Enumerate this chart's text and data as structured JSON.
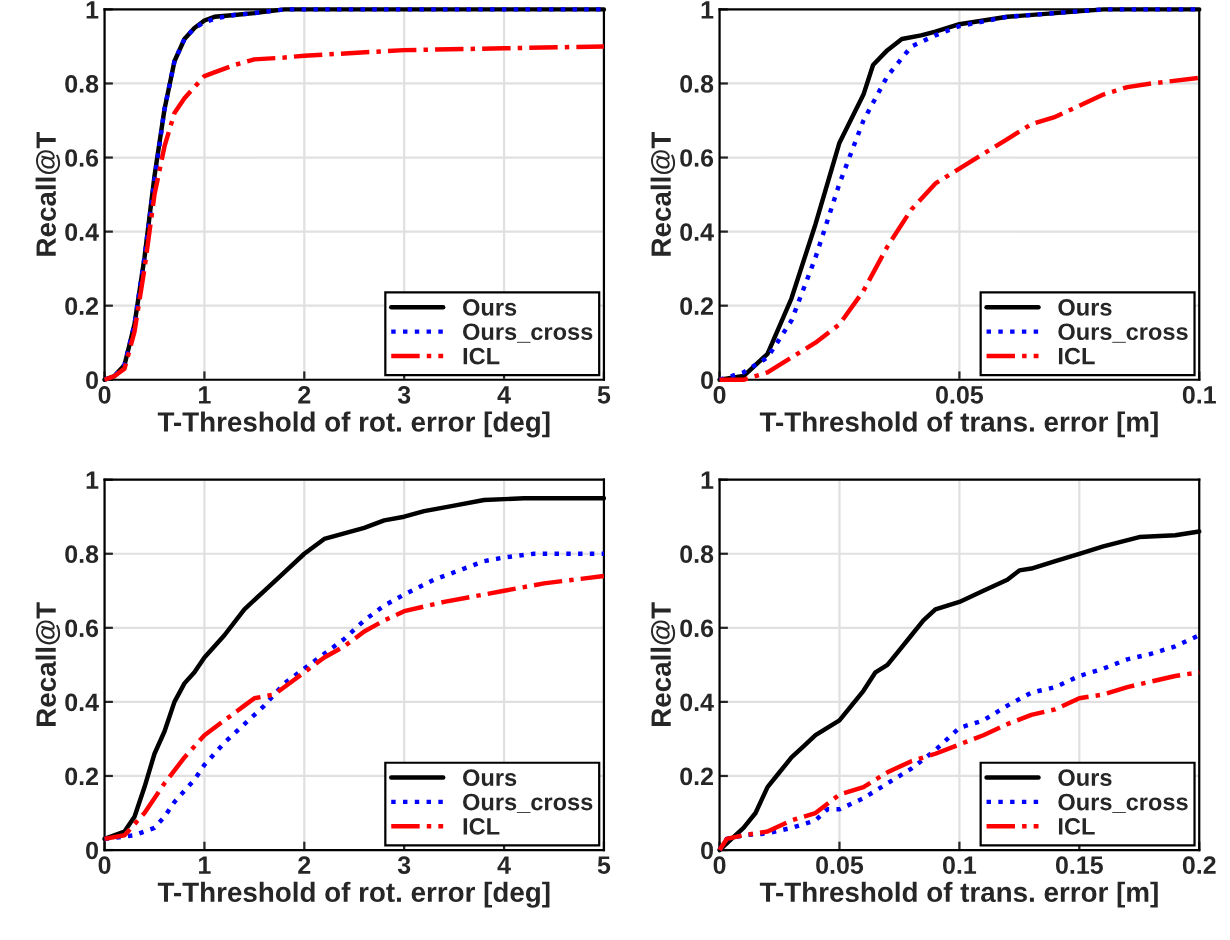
{
  "chart_data": [
    {
      "type": "line",
      "xlabel": "T-Threshold of rot. error [deg]",
      "ylabel": "Recall@T",
      "xlim": [
        0,
        5
      ],
      "xticks": [
        0,
        1,
        2,
        3,
        4,
        5
      ],
      "ylim": [
        0,
        1
      ],
      "yticks": [
        0,
        0.2,
        0.4,
        0.6,
        0.8,
        1
      ],
      "grid": true,
      "legend": "bottom right",
      "series": [
        {
          "name": "Ours",
          "color": "#000000",
          "line_style": "solid",
          "x": [
            0,
            0.1,
            0.2,
            0.3,
            0.4,
            0.5,
            0.6,
            0.7,
            0.8,
            0.9,
            1.0,
            1.1,
            1.3,
            1.5,
            1.8,
            2,
            3,
            4,
            5
          ],
          "values": [
            0,
            0.01,
            0.04,
            0.15,
            0.33,
            0.55,
            0.73,
            0.86,
            0.92,
            0.95,
            0.97,
            0.98,
            0.985,
            0.99,
            1,
            1,
            1,
            1,
            1
          ]
        },
        {
          "name": "Ours_cross",
          "color": "#0000ff",
          "line_style": "dotted",
          "x": [
            0,
            0.1,
            0.2,
            0.3,
            0.4,
            0.5,
            0.6,
            0.7,
            0.8,
            0.9,
            1.0,
            1.1,
            1.3,
            1.5,
            1.8,
            2,
            3,
            4,
            5
          ],
          "values": [
            0,
            0.01,
            0.04,
            0.15,
            0.33,
            0.54,
            0.73,
            0.86,
            0.92,
            0.95,
            0.965,
            0.975,
            0.985,
            0.99,
            1,
            1,
            1,
            1,
            1
          ]
        },
        {
          "name": "ICL",
          "color": "#ff0000",
          "line_style": "dashdot",
          "x": [
            0,
            0.1,
            0.2,
            0.3,
            0.4,
            0.5,
            0.6,
            0.7,
            0.8,
            0.9,
            1.0,
            1.1,
            1.3,
            1.5,
            1.8,
            2,
            3,
            4,
            5
          ],
          "values": [
            0,
            0.01,
            0.03,
            0.13,
            0.3,
            0.5,
            0.63,
            0.72,
            0.76,
            0.79,
            0.82,
            0.83,
            0.85,
            0.865,
            0.87,
            0.875,
            0.89,
            0.895,
            0.9
          ]
        }
      ]
    },
    {
      "type": "line",
      "xlabel": "T-Threshold of trans. error [m]",
      "ylabel": "Recall@T",
      "xlim": [
        0,
        0.1
      ],
      "xticks": [
        0,
        0.05,
        0.1
      ],
      "ylim": [
        0,
        1
      ],
      "yticks": [
        0,
        0.2,
        0.4,
        0.6,
        0.8,
        1
      ],
      "grid": true,
      "legend": "bottom right",
      "series": [
        {
          "name": "Ours",
          "color": "#000000",
          "line_style": "solid",
          "x": [
            0,
            0.005,
            0.01,
            0.015,
            0.02,
            0.025,
            0.03,
            0.032,
            0.035,
            0.038,
            0.042,
            0.045,
            0.05,
            0.06,
            0.07,
            0.08,
            0.1
          ],
          "values": [
            0,
            0.01,
            0.07,
            0.22,
            0.42,
            0.64,
            0.77,
            0.85,
            0.89,
            0.92,
            0.93,
            0.94,
            0.96,
            0.98,
            0.99,
            1,
            1
          ]
        },
        {
          "name": "Ours_cross",
          "color": "#0000ff",
          "line_style": "dotted",
          "x": [
            0,
            0.005,
            0.01,
            0.015,
            0.02,
            0.025,
            0.03,
            0.035,
            0.04,
            0.045,
            0.05,
            0.06,
            0.07,
            0.08,
            0.1
          ],
          "values": [
            0,
            0.02,
            0.06,
            0.16,
            0.33,
            0.53,
            0.7,
            0.82,
            0.9,
            0.93,
            0.955,
            0.98,
            0.99,
            1,
            1
          ]
        },
        {
          "name": "ICL",
          "color": "#ff0000",
          "line_style": "dashdot",
          "x": [
            0,
            0.005,
            0.01,
            0.015,
            0.02,
            0.025,
            0.03,
            0.035,
            0.04,
            0.045,
            0.05,
            0.055,
            0.06,
            0.065,
            0.07,
            0.075,
            0.08,
            0.085,
            0.09,
            0.1
          ],
          "values": [
            0,
            0,
            0.02,
            0.06,
            0.1,
            0.15,
            0.24,
            0.36,
            0.46,
            0.53,
            0.57,
            0.61,
            0.65,
            0.69,
            0.71,
            0.74,
            0.77,
            0.79,
            0.8,
            0.815
          ]
        }
      ]
    },
    {
      "type": "line",
      "xlabel": "T-Threshold of rot. error [deg]",
      "ylabel": "Recall@T",
      "xlim": [
        0,
        5
      ],
      "xticks": [
        0,
        1,
        2,
        3,
        4,
        5
      ],
      "ylim": [
        0,
        1
      ],
      "yticks": [
        0,
        0.2,
        0.4,
        0.6,
        0.8,
        1
      ],
      "grid": true,
      "legend": "bottom right",
      "series": [
        {
          "name": "Ours",
          "color": "#000000",
          "line_style": "solid",
          "x": [
            0,
            0.2,
            0.3,
            0.4,
            0.5,
            0.6,
            0.7,
            0.8,
            0.9,
            1.0,
            1.2,
            1.4,
            1.6,
            1.8,
            2.0,
            2.2,
            2.4,
            2.6,
            2.8,
            3.0,
            3.2,
            3.5,
            3.8,
            4.2,
            5
          ],
          "values": [
            0.03,
            0.05,
            0.09,
            0.17,
            0.26,
            0.32,
            0.4,
            0.45,
            0.48,
            0.52,
            0.58,
            0.65,
            0.7,
            0.75,
            0.8,
            0.84,
            0.855,
            0.87,
            0.89,
            0.9,
            0.915,
            0.93,
            0.945,
            0.95,
            0.95
          ]
        },
        {
          "name": "Ours_cross",
          "color": "#0000ff",
          "line_style": "dotted",
          "x": [
            0,
            0.3,
            0.5,
            0.6,
            0.7,
            0.8,
            0.9,
            1.0,
            1.2,
            1.4,
            1.6,
            1.8,
            2.0,
            2.2,
            2.4,
            2.6,
            2.8,
            3.0,
            3.3,
            3.6,
            3.8,
            4.0,
            4.3,
            5
          ],
          "values": [
            0.03,
            0.04,
            0.06,
            0.09,
            0.13,
            0.16,
            0.19,
            0.23,
            0.29,
            0.34,
            0.39,
            0.45,
            0.49,
            0.53,
            0.57,
            0.62,
            0.66,
            0.69,
            0.73,
            0.76,
            0.78,
            0.79,
            0.8,
            0.8
          ]
        },
        {
          "name": "ICL",
          "color": "#ff0000",
          "line_style": "dashdot",
          "x": [
            0,
            0.2,
            0.4,
            0.6,
            0.8,
            1.0,
            1.2,
            1.4,
            1.5,
            1.7,
            1.9,
            2.0,
            2.2,
            2.4,
            2.6,
            2.8,
            3.0,
            3.4,
            3.8,
            4.0,
            4.4,
            5
          ],
          "values": [
            0.03,
            0.04,
            0.1,
            0.18,
            0.25,
            0.31,
            0.35,
            0.39,
            0.41,
            0.42,
            0.46,
            0.48,
            0.52,
            0.55,
            0.59,
            0.62,
            0.645,
            0.67,
            0.69,
            0.7,
            0.72,
            0.74
          ]
        }
      ]
    },
    {
      "type": "line",
      "xlabel": "T-Threshold of trans. error [m]",
      "ylabel": "Recall@T",
      "xlim": [
        0,
        0.2
      ],
      "xticks": [
        0,
        0.05,
        0.1,
        0.15,
        0.2
      ],
      "ylim": [
        0,
        1
      ],
      "yticks": [
        0,
        0.2,
        0.4,
        0.6,
        0.8,
        1
      ],
      "grid": true,
      "legend": "bottom right",
      "series": [
        {
          "name": "Ours",
          "color": "#000000",
          "line_style": "solid",
          "x": [
            0,
            0.005,
            0.01,
            0.015,
            0.02,
            0.025,
            0.03,
            0.035,
            0.04,
            0.05,
            0.055,
            0.06,
            0.065,
            0.07,
            0.075,
            0.08,
            0.085,
            0.09,
            0.1,
            0.11,
            0.12,
            0.125,
            0.13,
            0.14,
            0.15,
            0.16,
            0.175,
            0.19,
            0.2
          ],
          "values": [
            0,
            0.03,
            0.06,
            0.1,
            0.17,
            0.21,
            0.25,
            0.28,
            0.31,
            0.35,
            0.39,
            0.43,
            0.48,
            0.5,
            0.54,
            0.58,
            0.62,
            0.65,
            0.67,
            0.7,
            0.73,
            0.755,
            0.76,
            0.78,
            0.8,
            0.82,
            0.845,
            0.85,
            0.86
          ]
        },
        {
          "name": "Ours_cross",
          "color": "#0000ff",
          "line_style": "dotted",
          "x": [
            0,
            0.003,
            0.01,
            0.02,
            0.03,
            0.04,
            0.045,
            0.05,
            0.06,
            0.07,
            0.08,
            0.09,
            0.1,
            0.11,
            0.12,
            0.13,
            0.14,
            0.15,
            0.16,
            0.17,
            0.18,
            0.19,
            0.2
          ],
          "values": [
            0,
            0.03,
            0.04,
            0.045,
            0.06,
            0.08,
            0.11,
            0.11,
            0.14,
            0.18,
            0.22,
            0.27,
            0.33,
            0.35,
            0.39,
            0.425,
            0.44,
            0.47,
            0.49,
            0.515,
            0.53,
            0.55,
            0.58
          ]
        },
        {
          "name": "ICL",
          "color": "#ff0000",
          "line_style": "dashdot",
          "x": [
            0,
            0.003,
            0.01,
            0.02,
            0.03,
            0.04,
            0.05,
            0.06,
            0.07,
            0.08,
            0.09,
            0.1,
            0.11,
            0.12,
            0.13,
            0.14,
            0.15,
            0.16,
            0.17,
            0.18,
            0.19,
            0.2
          ],
          "values": [
            0,
            0.03,
            0.04,
            0.05,
            0.08,
            0.1,
            0.15,
            0.17,
            0.21,
            0.24,
            0.26,
            0.285,
            0.31,
            0.34,
            0.365,
            0.38,
            0.41,
            0.42,
            0.44,
            0.455,
            0.47,
            0.48
          ]
        }
      ]
    }
  ]
}
